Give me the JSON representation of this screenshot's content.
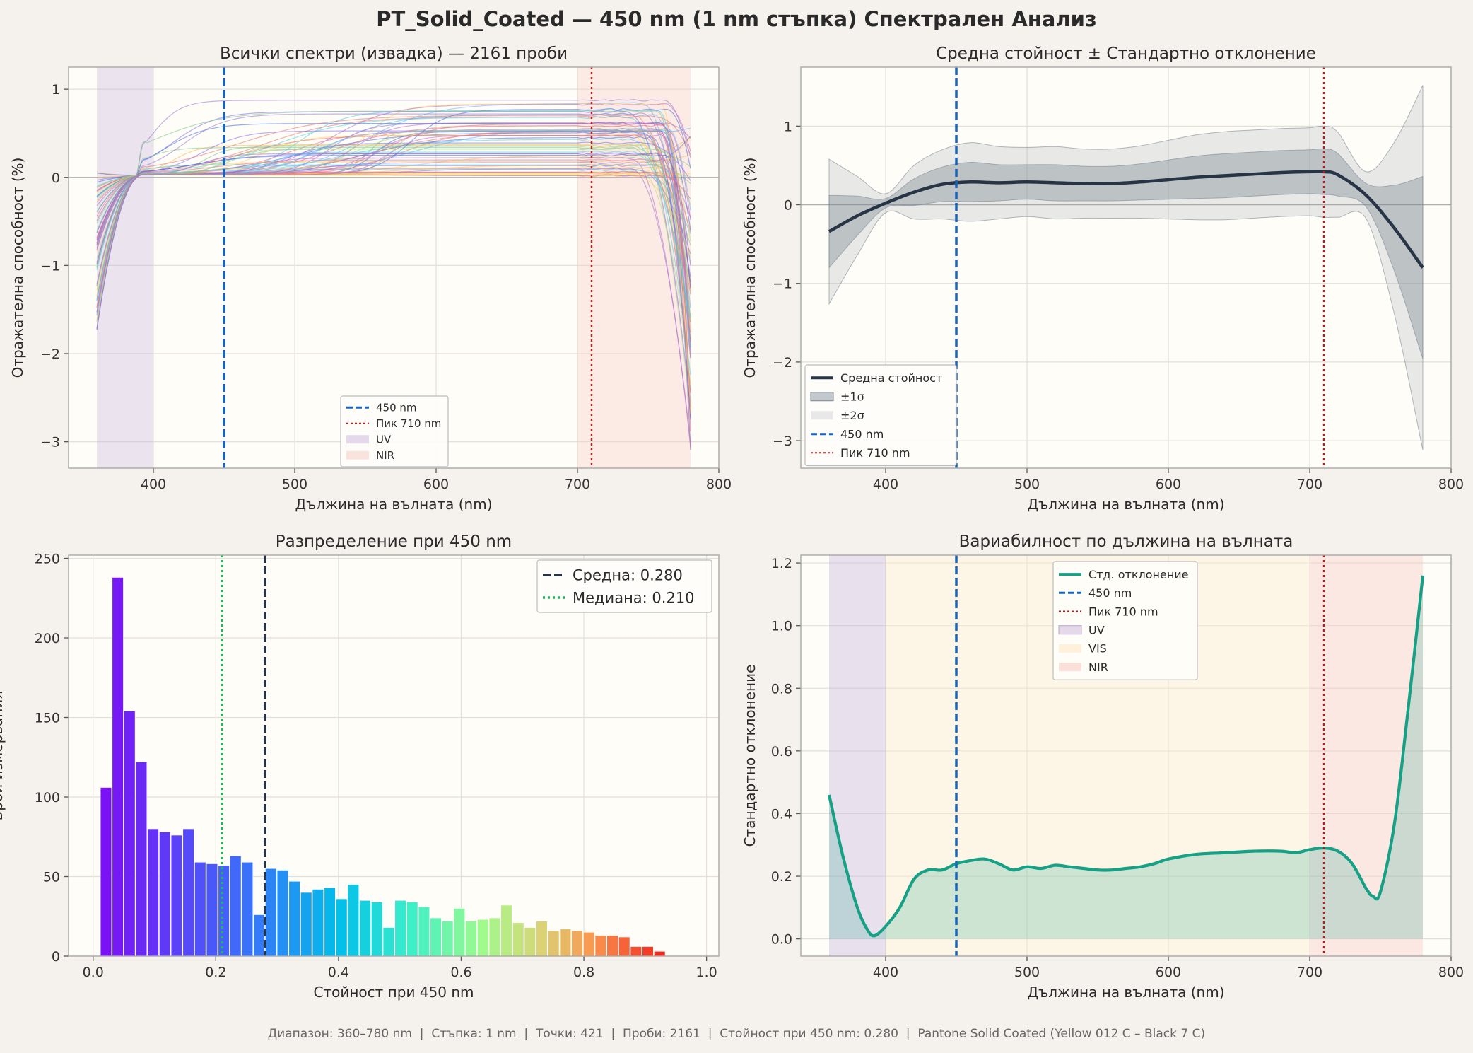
{
  "suptitle": "PT_Solid_Coated — 450 nm (1 nm стъпка) Спектрален Анализ",
  "footer": "Диапазон: 360–780 nm  |  Стъпка: 1 nm  |  Точки: 421  |  Проби: 2161  |  Стойност при 450 nm: 0.280  |  Pantone Solid Coated (Yellow 012 C – Black 7 C)",
  "colors": {
    "figure_bg": "#f5f1ec",
    "plot_bg": "#fefdf8",
    "marker_blue": "#1565c0",
    "peak_red": "#b71c1c",
    "mean_dark": "#263445",
    "std_teal": "#16a085",
    "uv": "#c9b3dc",
    "vis": "#fde8c8",
    "nir": "#f8c9c2",
    "median_green": "#1db954"
  },
  "chart_data": [
    {
      "type": "line",
      "title": "Всички спектри (извадка) — 2161 проби",
      "xlabel": "Дължина на вълната (nm)",
      "ylabel": "Отражателна способност (%)",
      "xlim": [
        340,
        800
      ],
      "ylim": [
        -3.3,
        1.25
      ],
      "xticks": [
        400,
        500,
        600,
        700,
        800
      ],
      "yticks": [
        1,
        0,
        -1,
        -2,
        -3
      ],
      "xtick_labels": [
        "400",
        "500",
        "600",
        "700",
        "800"
      ],
      "ytick_labels": [
        "1",
        "0",
        "−1",
        "−2",
        "−3"
      ],
      "regions": [
        {
          "name": "UV",
          "from": 360,
          "to": 400
        },
        {
          "name": "NIR",
          "from": 700,
          "to": 780
        }
      ],
      "marker_line": 450,
      "peak_line": 710,
      "legend": [
        "450 nm",
        "Пик 710 nm",
        "UV",
        "NIR"
      ],
      "legend_position": "lower center",
      "series_envelope": {
        "plateau_min": 0.02,
        "plateau_max": 0.88,
        "end_min": -3.1,
        "end_max": 0.6,
        "start_min": -1.8,
        "start_max": 0.12
      },
      "grid": true
    },
    {
      "type": "line",
      "title": "Средна стойност ± Стандартно отклонение",
      "xlabel": "Дължина на вълната (nm)",
      "ylabel": "Отражателна способност (%)",
      "xlim": [
        340,
        800
      ],
      "ylim": [
        -3.35,
        1.75
      ],
      "xticks": [
        400,
        500,
        600,
        700,
        800
      ],
      "yticks": [
        1,
        0,
        -1,
        -2,
        -3
      ],
      "xtick_labels": [
        "400",
        "500",
        "600",
        "700",
        "800"
      ],
      "ytick_labels": [
        "1",
        "0",
        "−1",
        "−2",
        "−3"
      ],
      "x": [
        360,
        380,
        400,
        420,
        440,
        460,
        480,
        500,
        520,
        540,
        560,
        580,
        600,
        620,
        640,
        660,
        680,
        700,
        710,
        720,
        740,
        760,
        780
      ],
      "mean": [
        -0.34,
        -0.14,
        0.02,
        0.16,
        0.26,
        0.29,
        0.28,
        0.29,
        0.28,
        0.27,
        0.27,
        0.29,
        0.32,
        0.35,
        0.37,
        0.39,
        0.41,
        0.42,
        0.42,
        0.38,
        0.12,
        -0.3,
        -0.8
      ],
      "std": [
        0.46,
        0.25,
        0.06,
        0.17,
        0.22,
        0.25,
        0.23,
        0.22,
        0.23,
        0.22,
        0.22,
        0.23,
        0.25,
        0.27,
        0.28,
        0.28,
        0.28,
        0.28,
        0.29,
        0.27,
        0.15,
        0.55,
        1.16
      ],
      "marker_line": 450,
      "peak_line": 710,
      "legend": [
        "Средна стойност",
        "±1σ",
        "±2σ",
        "450 nm",
        "Пик 710 nm"
      ],
      "legend_position": "lower left",
      "grid": true
    },
    {
      "type": "bar",
      "title": "Разпределение при 450 nm",
      "xlabel": "Стойност при 450 nm",
      "ylabel": "Брой измервания",
      "xlim": [
        -0.04,
        1.02
      ],
      "ylim": [
        0,
        252
      ],
      "xticks": [
        0,
        0.2,
        0.4,
        0.6,
        0.8,
        1.0
      ],
      "yticks": [
        0,
        50,
        100,
        150,
        200,
        250
      ],
      "xtick_labels": [
        "0.0",
        "0.2",
        "0.4",
        "0.6",
        "0.8",
        "1.0"
      ],
      "ytick_labels": [
        "0",
        "50",
        "100",
        "150",
        "200",
        "250"
      ],
      "bin_start": 0.012,
      "bin_width": 0.0192,
      "counts": [
        106,
        238,
        154,
        122,
        80,
        78,
        76,
        80,
        59,
        58,
        57,
        63,
        59,
        26,
        55,
        54,
        47,
        40,
        42,
        43,
        36,
        45,
        35,
        34,
        18,
        35,
        34,
        31,
        24,
        22,
        30,
        22,
        23,
        24,
        32,
        21,
        18,
        22,
        16,
        17,
        16,
        15,
        13,
        13,
        12,
        6,
        6,
        3
      ],
      "mean": 0.28,
      "median": 0.21,
      "legend": [
        "Средна: 0.280",
        "Медиана: 0.210"
      ],
      "legend_position": "upper right",
      "grid": true
    },
    {
      "type": "line",
      "title": "Вариабилност по дължина на вълната",
      "xlabel": "Дължина на вълната (nm)",
      "ylabel": "Стандартно отклонение",
      "xlim": [
        340,
        800
      ],
      "ylim": [
        -0.055,
        1.225
      ],
      "xticks": [
        400,
        500,
        600,
        700,
        800
      ],
      "yticks": [
        0,
        0.2,
        0.4,
        0.6,
        0.8,
        1.0,
        1.2
      ],
      "xtick_labels": [
        "400",
        "500",
        "600",
        "700",
        "800"
      ],
      "ytick_labels": [
        "0.0",
        "0.2",
        "0.4",
        "0.6",
        "0.8",
        "1.0",
        "1.2"
      ],
      "x": [
        360,
        370,
        380,
        387,
        392,
        400,
        410,
        420,
        430,
        440,
        450,
        460,
        470,
        480,
        490,
        500,
        510,
        520,
        530,
        540,
        550,
        560,
        570,
        580,
        590,
        600,
        620,
        640,
        660,
        680,
        690,
        700,
        710,
        720,
        730,
        740,
        745,
        750,
        760,
        770,
        780
      ],
      "std": [
        0.46,
        0.26,
        0.1,
        0.03,
        0.01,
        0.04,
        0.1,
        0.19,
        0.22,
        0.22,
        0.24,
        0.25,
        0.255,
        0.24,
        0.22,
        0.23,
        0.225,
        0.235,
        0.23,
        0.225,
        0.22,
        0.22,
        0.225,
        0.23,
        0.24,
        0.255,
        0.27,
        0.275,
        0.28,
        0.28,
        0.275,
        0.285,
        0.29,
        0.28,
        0.24,
        0.16,
        0.135,
        0.15,
        0.37,
        0.75,
        1.16
      ],
      "regions": [
        {
          "name": "UV",
          "from": 360,
          "to": 400
        },
        {
          "name": "VIS",
          "from": 400,
          "to": 700
        },
        {
          "name": "NIR",
          "from": 700,
          "to": 780
        }
      ],
      "marker_line": 450,
      "peak_line": 710,
      "legend": [
        "Стд. отклонение",
        "450 nm",
        "Пик 710 nm",
        "UV",
        "VIS",
        "NIR"
      ],
      "legend_position": "upper center",
      "grid": true
    }
  ]
}
